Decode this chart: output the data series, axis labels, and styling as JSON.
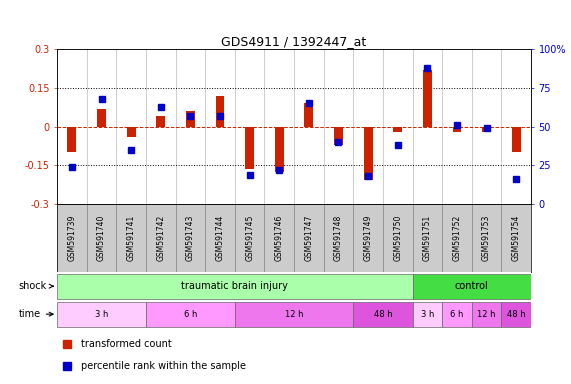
{
  "title": "GDS4911 / 1392447_at",
  "samples": [
    "GSM591739",
    "GSM591740",
    "GSM591741",
    "GSM591742",
    "GSM591743",
    "GSM591744",
    "GSM591745",
    "GSM591746",
    "GSM591747",
    "GSM591748",
    "GSM591749",
    "GSM591750",
    "GSM591751",
    "GSM591752",
    "GSM591753",
    "GSM591754"
  ],
  "red_values": [
    -0.1,
    0.07,
    -0.04,
    0.04,
    0.06,
    0.12,
    -0.165,
    -0.175,
    0.09,
    -0.07,
    -0.205,
    -0.02,
    0.22,
    -0.02,
    -0.02,
    -0.1
  ],
  "blue_values": [
    24,
    68,
    35,
    63,
    57,
    57,
    19,
    22,
    65,
    40,
    18,
    38,
    88,
    51,
    49,
    16
  ],
  "ylim_left": [
    -0.3,
    0.3
  ],
  "ylim_right": [
    0,
    100
  ],
  "yticks_left": [
    -0.3,
    -0.15,
    0.0,
    0.15,
    0.3
  ],
  "yticks_right": [
    0,
    25,
    50,
    75,
    100
  ],
  "hlines_dotted": [
    -0.15,
    0.15
  ],
  "hline_zero": 0.0,
  "shock_groups": [
    {
      "label": "traumatic brain injury",
      "start": 0,
      "end": 12,
      "color": "#aaffaa"
    },
    {
      "label": "control",
      "start": 12,
      "end": 16,
      "color": "#44dd44"
    }
  ],
  "time_groups": [
    {
      "label": "3 h",
      "start": 0,
      "end": 3,
      "color": "#ffccff"
    },
    {
      "label": "6 h",
      "start": 3,
      "end": 6,
      "color": "#ff99ff"
    },
    {
      "label": "12 h",
      "start": 6,
      "end": 10,
      "color": "#ee77ee"
    },
    {
      "label": "48 h",
      "start": 10,
      "end": 12,
      "color": "#dd55dd"
    },
    {
      "label": "3 h",
      "start": 12,
      "end": 13,
      "color": "#ffccff"
    },
    {
      "label": "6 h",
      "start": 13,
      "end": 14,
      "color": "#ff99ff"
    },
    {
      "label": "12 h",
      "start": 14,
      "end": 15,
      "color": "#ee77ee"
    },
    {
      "label": "48 h",
      "start": 15,
      "end": 16,
      "color": "#dd55dd"
    }
  ],
  "bar_color": "#cc2200",
  "dot_color": "#0000cc",
  "zero_line_color": "#cc2200",
  "bg_color": "#ffffff",
  "label_bg_color": "#cccccc",
  "label_border_color": "#888888"
}
